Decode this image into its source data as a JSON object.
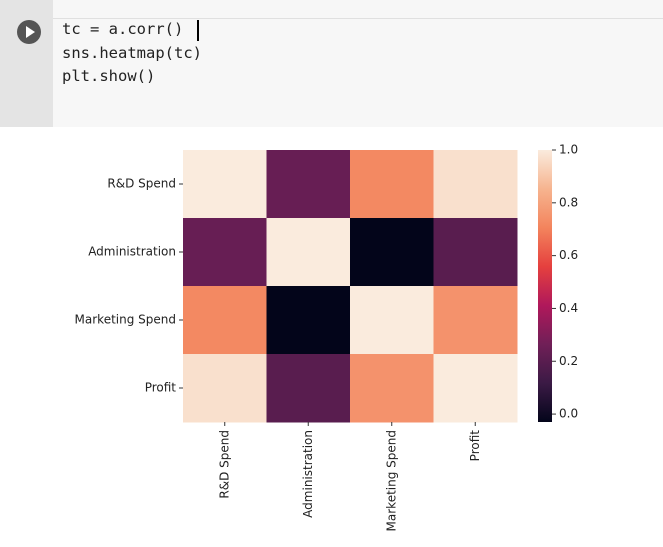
{
  "code": {
    "lines": [
      "tc = a.corr()",
      "sns.heatmap(tc)",
      "plt.show()"
    ]
  },
  "chart_data": {
    "type": "heatmap",
    "rows": [
      "R&D Spend",
      "Administration",
      "Marketing Spend",
      "Profit"
    ],
    "columns": [
      "R&D Spend",
      "Administration",
      "Marketing Spend",
      "Profit"
    ],
    "z": [
      [
        1,
        0.24,
        0.72,
        0.97
      ],
      [
        0.24,
        1,
        -0.03,
        0.2
      ],
      [
        0.72,
        -0.03,
        1,
        0.75
      ],
      [
        0.97,
        0.2,
        0.75,
        1
      ]
    ],
    "zlim": [
      -0.03,
      1
    ],
    "zticks": [
      {
        "value": 0,
        "label": "0.0"
      },
      0.2,
      0.4,
      0.6,
      0.8,
      {
        "value": 1,
        "label": "1.0"
      }
    ],
    "colorscale": [
      "#03051a",
      "#3b1a45",
      "#701f57",
      "#b0185b",
      "#e5403e",
      "#f3845d",
      "#f6b48f",
      "#faebdd"
    ]
  }
}
